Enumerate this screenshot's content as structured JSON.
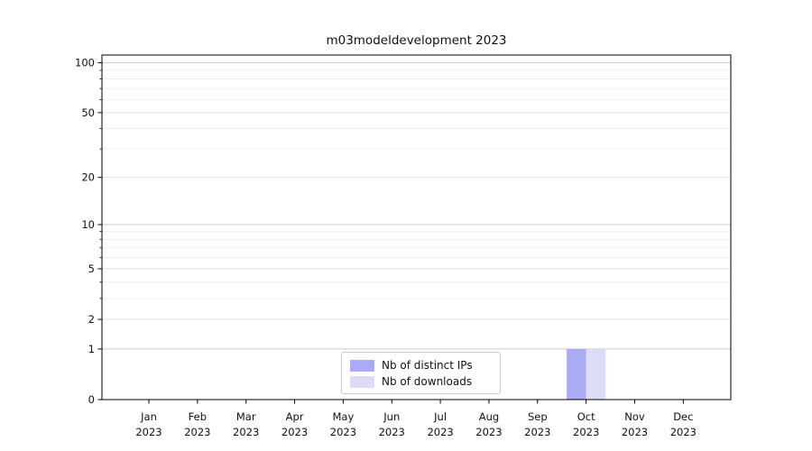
{
  "chart_data": {
    "type": "bar",
    "title": "m03modeldevelopment 2023",
    "categories": [
      "Jan 2023",
      "Feb 2023",
      "Mar 2023",
      "Apr 2023",
      "May 2023",
      "Jun 2023",
      "Jul 2023",
      "Aug 2023",
      "Sep 2023",
      "Oct 2023",
      "Nov 2023",
      "Dec 2023"
    ],
    "series": [
      {
        "name": "Nb of distinct IPs",
        "color": "#aaaaf5",
        "values": [
          0,
          0,
          0,
          0,
          0,
          0,
          0,
          0,
          0,
          1,
          0,
          0
        ]
      },
      {
        "name": "Nb of downloads",
        "color": "#dcdcf8",
        "values": [
          0,
          0,
          0,
          0,
          0,
          0,
          0,
          0,
          0,
          1,
          0,
          0
        ]
      }
    ],
    "xlabel": "",
    "ylabel": "",
    "y_scale": "log1p",
    "ylim": [
      0,
      111
    ],
    "y_major_ticks": [
      0,
      1,
      2,
      5,
      10,
      20,
      50,
      100
    ],
    "y_minor_ticks": [
      3,
      4,
      6,
      7,
      8,
      9,
      30,
      40,
      60,
      70,
      80,
      90
    ],
    "grid": true,
    "legend_position": "lower center"
  }
}
